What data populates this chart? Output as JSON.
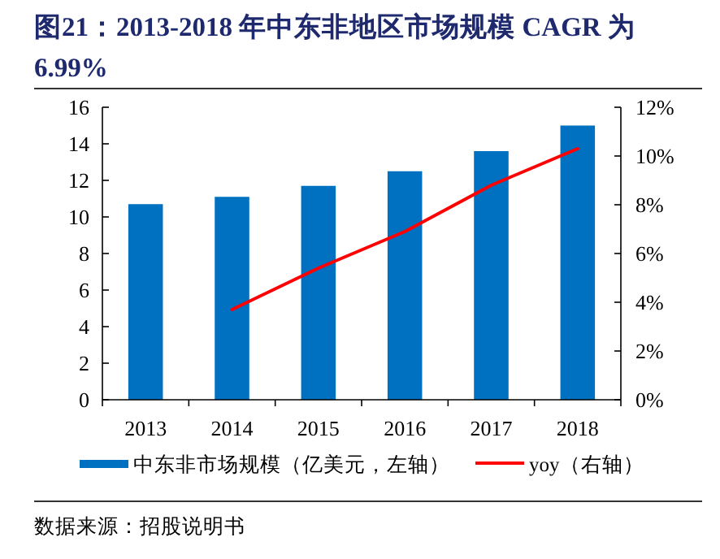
{
  "chart_data": {
    "type": "bar",
    "title": "图21：2013-2018 年中东非地区市场规模 CAGR 为 6.99%",
    "categories": [
      "2013",
      "2014",
      "2015",
      "2016",
      "2017",
      "2018"
    ],
    "series": [
      {
        "name": "中东非市场规模（亿美元，左轴）",
        "color": "#0070c0",
        "values": [
          10.7,
          11.1,
          11.7,
          12.5,
          13.6,
          15.0
        ]
      },
      {
        "name": "yoy（右轴）",
        "type": "line",
        "axis": "y2",
        "color": "#ff0000",
        "values": [
          null,
          3.7,
          5.4,
          6.9,
          8.8,
          10.3
        ]
      }
    ],
    "ylim": [
      0,
      16
    ],
    "yticks": [
      0,
      2,
      4,
      6,
      8,
      10,
      12,
      14,
      16
    ],
    "y2lim": [
      0,
      12
    ],
    "y2ticks": [
      {
        "value": 0,
        "label": "0%"
      },
      {
        "value": 2,
        "label": "2%"
      },
      {
        "value": 4,
        "label": "4%"
      },
      {
        "value": 6,
        "label": "6%"
      },
      {
        "value": 8,
        "label": "8%"
      },
      {
        "value": 10,
        "label": "10%"
      },
      {
        "value": 12,
        "label": "12%"
      }
    ],
    "legend": "bottom",
    "grid": false,
    "annotations": [
      "数据来源：招股说明书"
    ]
  }
}
